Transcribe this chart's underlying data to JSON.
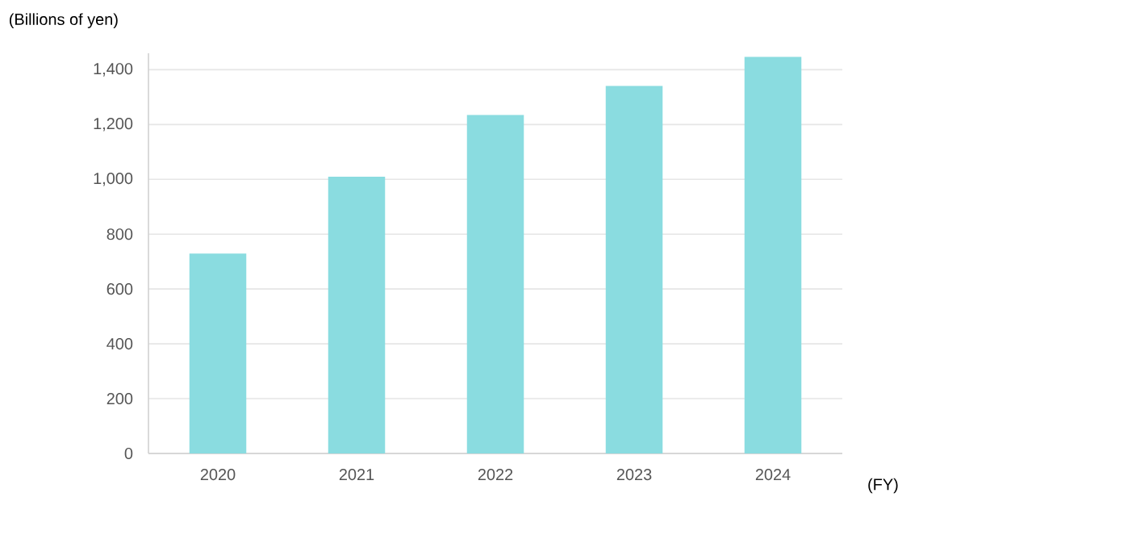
{
  "chart_data": {
    "type": "bar",
    "ylabel": "(Billions of yen)",
    "xlabel": "(FY)",
    "categories": [
      "2020",
      "2021",
      "2022",
      "2023",
      "2024"
    ],
    "values": [
      729,
      1010,
      1235,
      1341,
      1447
    ],
    "color": "#8adce0",
    "ylim": [
      0,
      1460
    ],
    "yticks": [
      0,
      200,
      400,
      600,
      800,
      {
        "value": 1000,
        "label": "1,000"
      },
      {
        "value": 1200,
        "label": "1,200"
      },
      {
        "value": 1400,
        "label": "1,400"
      }
    ],
    "grid": "y"
  }
}
